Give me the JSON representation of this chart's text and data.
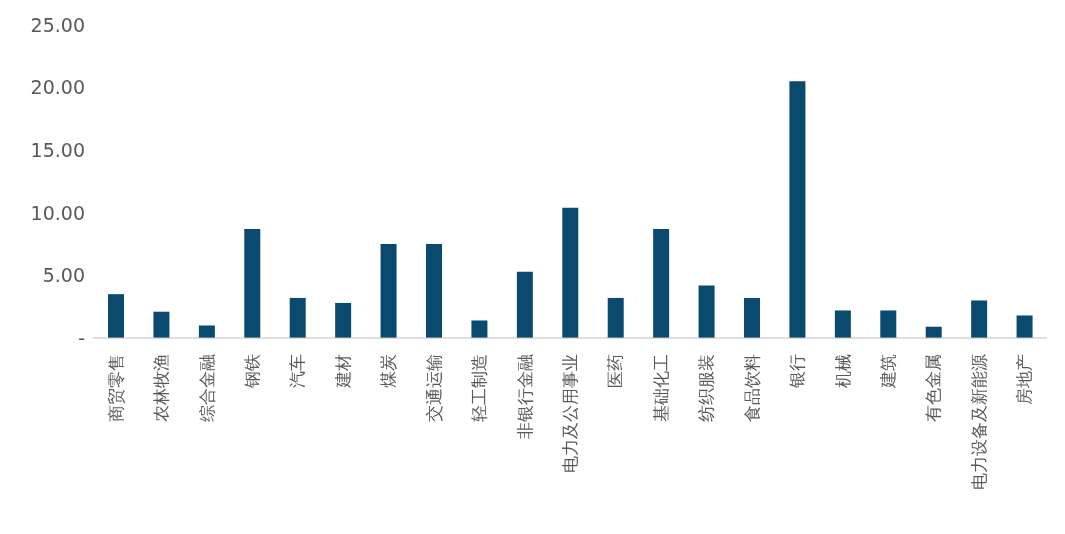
{
  "chart_data": {
    "type": "bar",
    "categories": [
      "商贸零售",
      "农林牧渔",
      "综合金融",
      "钢铁",
      "汽车",
      "建材",
      "煤炭",
      "交通运输",
      "轻工制造",
      "非银行金融",
      "电力及公用事业",
      "医药",
      "基础化工",
      "纺织服装",
      "食品饮料",
      "银行",
      "机械",
      "建筑",
      "有色金属",
      "电力设备及新能源",
      "房地产"
    ],
    "values": [
      3.5,
      2.1,
      1.0,
      8.7,
      3.2,
      2.8,
      7.5,
      7.5,
      1.4,
      5.3,
      10.4,
      3.2,
      8.7,
      4.2,
      3.2,
      20.5,
      2.2,
      2.2,
      0.9,
      3.0,
      1.8
    ],
    "color": "#0b4a6f",
    "ylim": [
      0,
      25
    ],
    "yticks": [
      {
        "value": 0,
        "label": "-"
      },
      {
        "value": 5,
        "label": "5.00"
      },
      {
        "value": 10,
        "label": "10.00"
      },
      {
        "value": 15,
        "label": "15.00"
      },
      {
        "value": 20,
        "label": "20.00"
      },
      {
        "value": 25,
        "label": "25.00"
      }
    ],
    "grid": false
  }
}
